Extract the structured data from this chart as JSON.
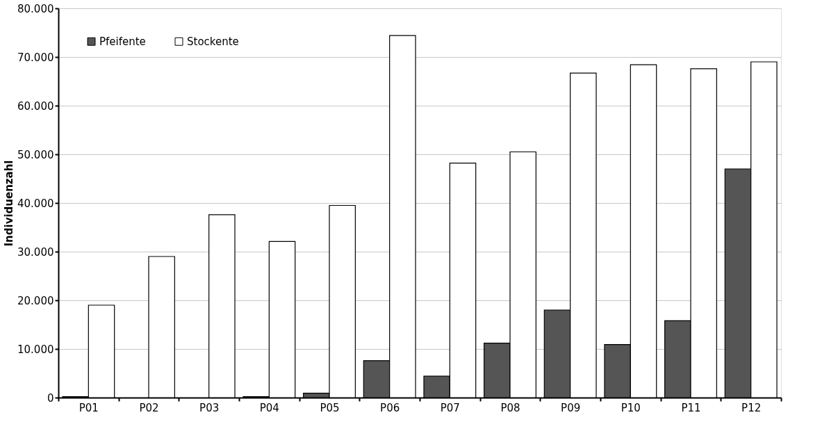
{
  "chart_data": {
    "type": "bar",
    "ylabel": "Individuenzahl",
    "categories": [
      "P01",
      "P02",
      "P03",
      "P04",
      "P05",
      "P06",
      "P07",
      "P08",
      "P09",
      "P10",
      "P11",
      "P12"
    ],
    "series": [
      {
        "name": "Pfeifente",
        "color": "#555555",
        "values": [
          200,
          0,
          0,
          200,
          900,
          7600,
          4400,
          11200,
          18000,
          10900,
          15800,
          47000
        ]
      },
      {
        "name": "Stockente",
        "color": "#ffffff",
        "values": [
          19000,
          29000,
          37600,
          32100,
          39500,
          74400,
          48200,
          50500,
          66700,
          68400,
          67600,
          69000
        ]
      }
    ],
    "ylim": [
      0,
      80000
    ],
    "yticks": [
      {
        "value": 0,
        "label": "0"
      },
      {
        "value": 10000,
        "label": "10.000"
      },
      {
        "value": 20000,
        "label": "20.000"
      },
      {
        "value": 30000,
        "label": "30.000"
      },
      {
        "value": 40000,
        "label": "40.000"
      },
      {
        "value": 50000,
        "label": "50.000"
      },
      {
        "value": 60000,
        "label": "60.000"
      },
      {
        "value": 70000,
        "label": "70.000"
      },
      {
        "value": 80000,
        "label": "80.000"
      }
    ],
    "grid": "y",
    "legend": "top left"
  }
}
